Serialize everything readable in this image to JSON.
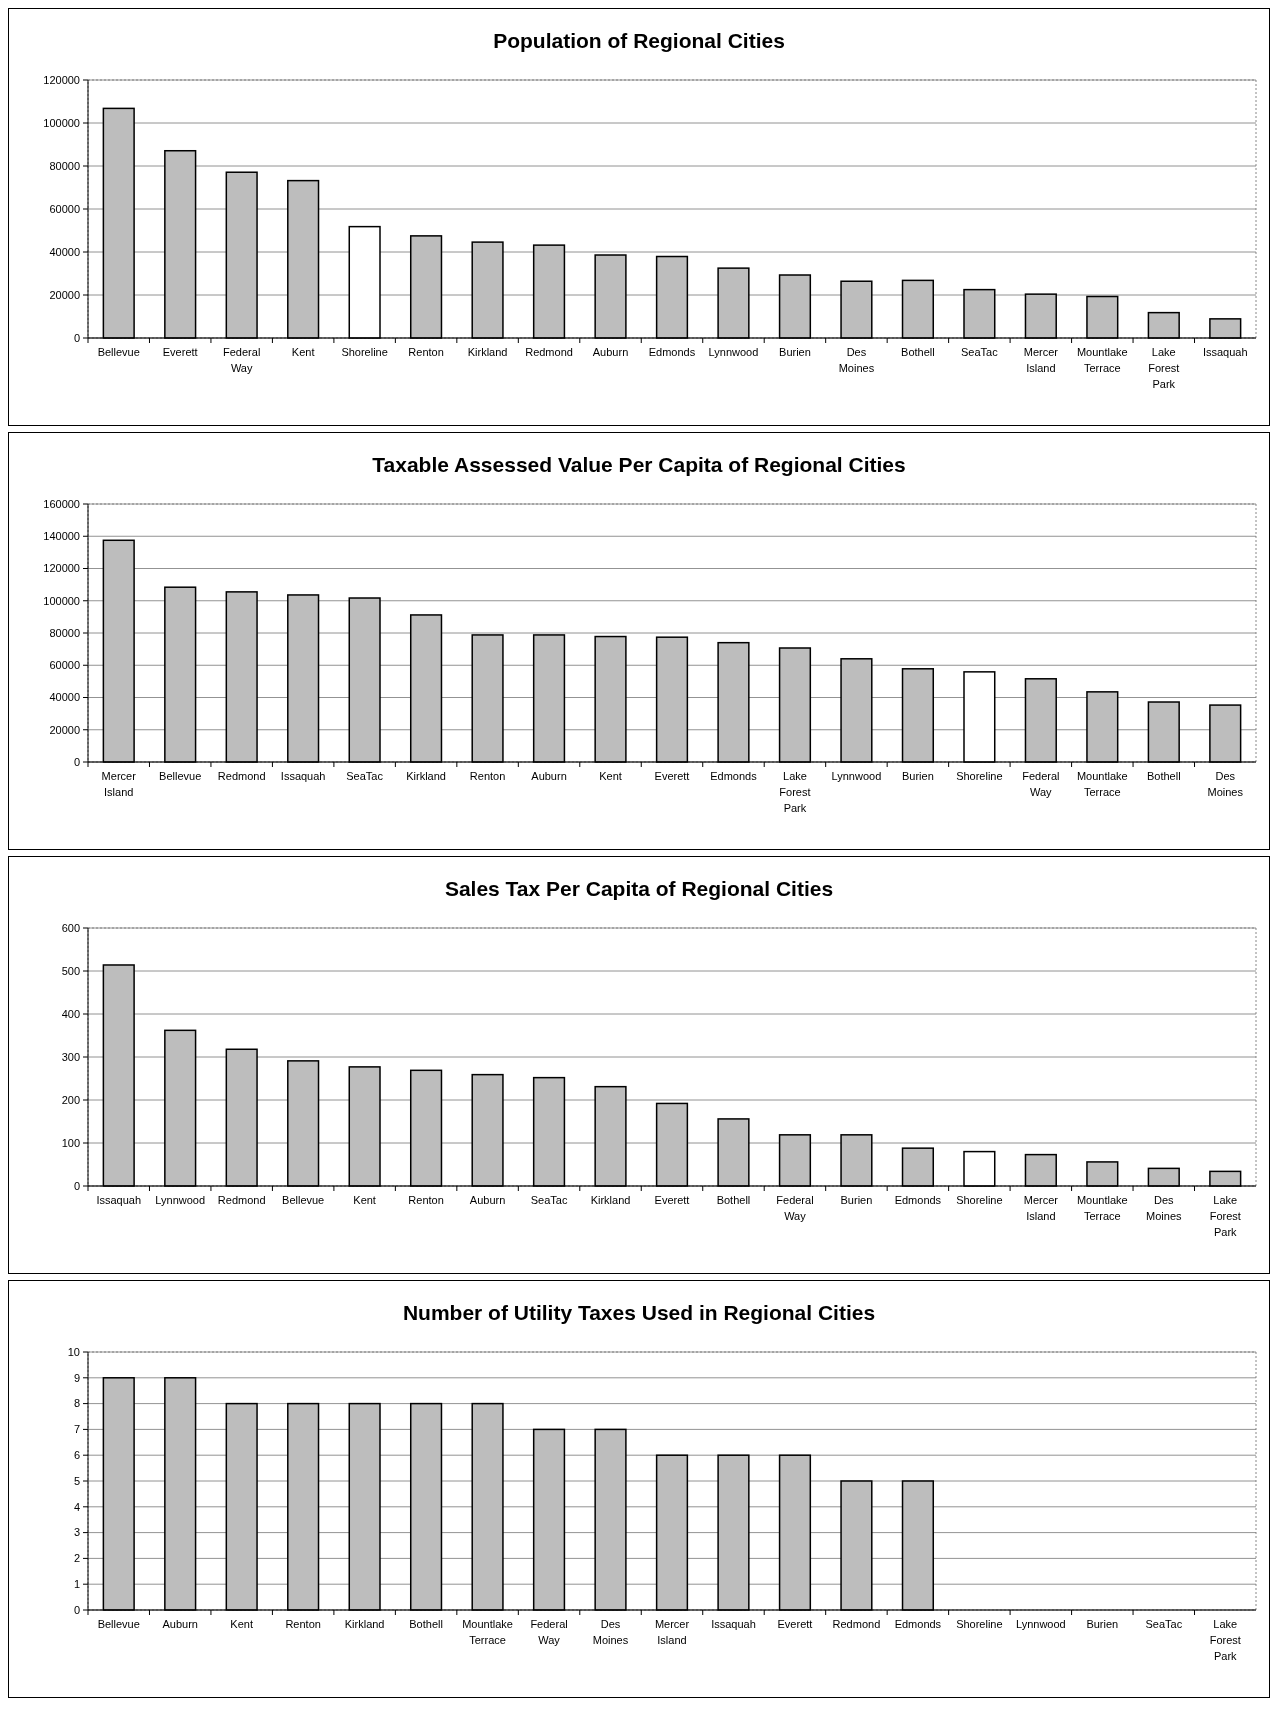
{
  "chart_data": [
    {
      "type": "bar",
      "title": "Population of Regional Cities",
      "categories": [
        "Bellevue",
        "Everett",
        "Federal Way",
        "Kent",
        "Shoreline",
        "Renton",
        "Kirkland",
        "Redmond",
        "Auburn",
        "Edmonds",
        "Lynnwood",
        "Burien",
        "Des Moines",
        "Bothell",
        "SeaTac",
        "Mercer Island",
        "Mountlake Terrace",
        "Lake Forest Park",
        "Issaquah"
      ],
      "values": [
        106800,
        87100,
        77100,
        73200,
        51800,
        47500,
        44600,
        43200,
        38600,
        37900,
        32500,
        29300,
        26400,
        26800,
        22500,
        20400,
        19300,
        11800,
        8900
      ],
      "colors": [
        "#bdbdbd",
        "#bdbdbd",
        "#bdbdbd",
        "#bdbdbd",
        "#ffffff",
        "#bdbdbd",
        "#bdbdbd",
        "#bdbdbd",
        "#bdbdbd",
        "#bdbdbd",
        "#bdbdbd",
        "#bdbdbd",
        "#bdbdbd",
        "#bdbdbd",
        "#bdbdbd",
        "#bdbdbd",
        "#bdbdbd",
        "#bdbdbd",
        "#bdbdbd"
      ],
      "ylim": [
        0,
        120000
      ],
      "yticks": [
        0,
        20000,
        40000,
        60000,
        80000,
        100000,
        120000
      ],
      "grid": "y"
    },
    {
      "type": "bar",
      "title": "Taxable Assessed Value Per Capita of Regional Cities",
      "categories": [
        "Mercer Island",
        "Bellevue",
        "Redmond",
        "Issaquah",
        "SeaTac",
        "Kirkland",
        "Renton",
        "Auburn",
        "Kent",
        "Everett",
        "Edmonds",
        "Lake Forest Park",
        "Lynnwood",
        "Burien",
        "Shoreline",
        "Federal Way",
        "Mountlake Terrace",
        "Bothell",
        "Des Moines"
      ],
      "values": [
        137500,
        108400,
        105500,
        103600,
        101700,
        91200,
        78800,
        78800,
        77800,
        77400,
        74000,
        70700,
        64000,
        57800,
        55900,
        51600,
        43500,
        37200,
        35300
      ],
      "colors": [
        "#bdbdbd",
        "#bdbdbd",
        "#bdbdbd",
        "#bdbdbd",
        "#bdbdbd",
        "#bdbdbd",
        "#bdbdbd",
        "#bdbdbd",
        "#bdbdbd",
        "#bdbdbd",
        "#bdbdbd",
        "#bdbdbd",
        "#bdbdbd",
        "#bdbdbd",
        "#ffffff",
        "#bdbdbd",
        "#bdbdbd",
        "#bdbdbd",
        "#bdbdbd"
      ],
      "ylim": [
        0,
        160000
      ],
      "yticks": [
        0,
        20000,
        40000,
        60000,
        80000,
        100000,
        120000,
        140000,
        160000
      ],
      "grid": "y"
    },
    {
      "type": "bar",
      "title": "Sales Tax Per Capita of Regional Cities",
      "categories": [
        "Issaquah",
        "Lynnwood",
        "Redmond",
        "Bellevue",
        "Kent",
        "Renton",
        "Auburn",
        "SeaTac",
        "Kirkland",
        "Everett",
        "Bothell",
        "Federal Way",
        "Burien",
        "Edmonds",
        "Shoreline",
        "Mercer Island",
        "Mountlake Terrace",
        "Des Moines",
        "Lake Forest Park"
      ],
      "values": [
        514,
        362,
        318,
        291,
        277,
        269,
        259,
        252,
        231,
        192,
        156,
        119,
        119,
        88,
        80,
        73,
        56,
        41,
        34
      ],
      "colors": [
        "#bdbdbd",
        "#bdbdbd",
        "#bdbdbd",
        "#bdbdbd",
        "#bdbdbd",
        "#bdbdbd",
        "#bdbdbd",
        "#bdbdbd",
        "#bdbdbd",
        "#bdbdbd",
        "#bdbdbd",
        "#bdbdbd",
        "#bdbdbd",
        "#bdbdbd",
        "#ffffff",
        "#bdbdbd",
        "#bdbdbd",
        "#bdbdbd",
        "#bdbdbd"
      ],
      "ylim": [
        0,
        600
      ],
      "yticks": [
        0,
        100,
        200,
        300,
        400,
        500,
        600
      ],
      "grid": "y"
    },
    {
      "type": "bar",
      "title": "Number of Utility Taxes Used in Regional Cities",
      "categories": [
        "Bellevue",
        "Auburn",
        "Kent",
        "Renton",
        "Kirkland",
        "Bothell",
        "Mountlake Terrace",
        "Federal Way",
        "Des Moines",
        "Mercer Island",
        "Issaquah",
        "Everett",
        "Redmond",
        "Edmonds",
        "Shoreline",
        "Lynnwood",
        "Burien",
        "SeaTac",
        "Lake Forest Park"
      ],
      "values": [
        9,
        9,
        8,
        8,
        8,
        8,
        8,
        7,
        7,
        6,
        6,
        6,
        5,
        5,
        0,
        0,
        0,
        0,
        0
      ],
      "colors": [
        "#bdbdbd",
        "#bdbdbd",
        "#bdbdbd",
        "#bdbdbd",
        "#bdbdbd",
        "#bdbdbd",
        "#bdbdbd",
        "#bdbdbd",
        "#bdbdbd",
        "#bdbdbd",
        "#bdbdbd",
        "#bdbdbd",
        "#bdbdbd",
        "#bdbdbd",
        "#bdbdbd",
        "#bdbdbd",
        "#bdbdbd",
        "#bdbdbd",
        "#bdbdbd"
      ],
      "ylim": [
        0,
        10
      ],
      "yticks": [
        0,
        1,
        2,
        3,
        4,
        5,
        6,
        7,
        8,
        9,
        10
      ],
      "grid": "y"
    }
  ]
}
